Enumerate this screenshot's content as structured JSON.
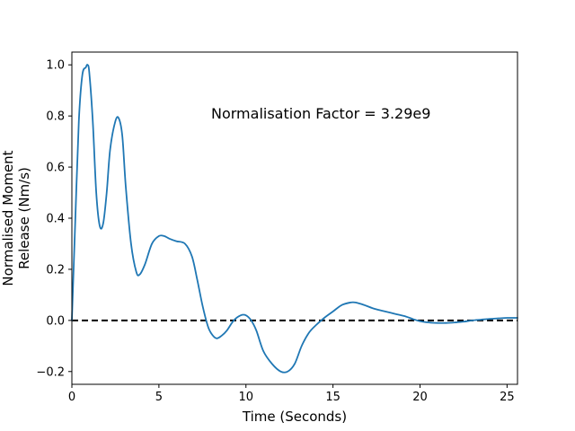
{
  "chart_data": {
    "type": "line",
    "title": "",
    "xlabel": "Time (Seconds)",
    "ylabel_lines": [
      "Normalised Moment",
      "Release (Nm/s)"
    ],
    "xlim": [
      0,
      25.6
    ],
    "ylim": [
      -0.25,
      1.05
    ],
    "x_ticks": [
      0,
      5,
      10,
      15,
      20,
      25
    ],
    "x_tick_labels": [
      "0",
      "5",
      "10",
      "15",
      "20",
      "25"
    ],
    "y_ticks": [
      -0.2,
      0.0,
      0.2,
      0.4,
      0.6,
      0.8,
      1.0
    ],
    "y_tick_labels": [
      "−0.2",
      "0.0",
      "0.2",
      "0.4",
      "0.6",
      "0.8",
      "1.0"
    ],
    "grid": false,
    "legend": null,
    "annotation": {
      "text": "Normalisation Factor = 3.29e9",
      "x": 8.0,
      "y": 0.8
    },
    "reference_line": {
      "y": 0.0,
      "style": "dashed",
      "color": "#000000"
    },
    "series": [
      {
        "color": "#1f77b4",
        "x": [
          0,
          0.2,
          0.4,
          0.6,
          0.8,
          0.9,
          1.0,
          1.2,
          1.4,
          1.6,
          1.8,
          2.0,
          2.2,
          2.5,
          2.7,
          2.9,
          3.1,
          3.4,
          3.7,
          3.9,
          4.2,
          4.6,
          5.0,
          5.3,
          5.6,
          6.0,
          6.5,
          6.9,
          7.2,
          7.5,
          7.8,
          8.0,
          8.3,
          8.6,
          8.9,
          9.3,
          9.7,
          10.0,
          10.3,
          10.6,
          11.0,
          11.5,
          12.0,
          12.4,
          12.8,
          13.2,
          13.6,
          14.0,
          14.5,
          15.0,
          15.5,
          16.0,
          16.3,
          16.8,
          17.4,
          18.0,
          18.6,
          19.2,
          19.6,
          20.0,
          20.5,
          21.0,
          21.5,
          22.0,
          22.5,
          23.0,
          23.5,
          24.0,
          24.5,
          25.0,
          25.6
        ],
        "y": [
          0.0,
          0.4,
          0.78,
          0.96,
          0.99,
          1.0,
          0.97,
          0.78,
          0.5,
          0.37,
          0.38,
          0.5,
          0.67,
          0.78,
          0.79,
          0.72,
          0.52,
          0.3,
          0.19,
          0.18,
          0.22,
          0.3,
          0.33,
          0.33,
          0.32,
          0.31,
          0.3,
          0.25,
          0.16,
          0.06,
          -0.02,
          -0.05,
          -0.07,
          -0.06,
          -0.04,
          0.0,
          0.02,
          0.02,
          0.0,
          -0.04,
          -0.12,
          -0.17,
          -0.2,
          -0.2,
          -0.17,
          -0.1,
          -0.05,
          -0.02,
          0.01,
          0.035,
          0.06,
          0.07,
          0.07,
          0.06,
          0.045,
          0.035,
          0.025,
          0.015,
          0.005,
          -0.003,
          -0.008,
          -0.01,
          -0.01,
          -0.008,
          -0.005,
          0.0,
          0.003,
          0.006,
          0.008,
          0.01,
          0.01
        ]
      }
    ]
  }
}
